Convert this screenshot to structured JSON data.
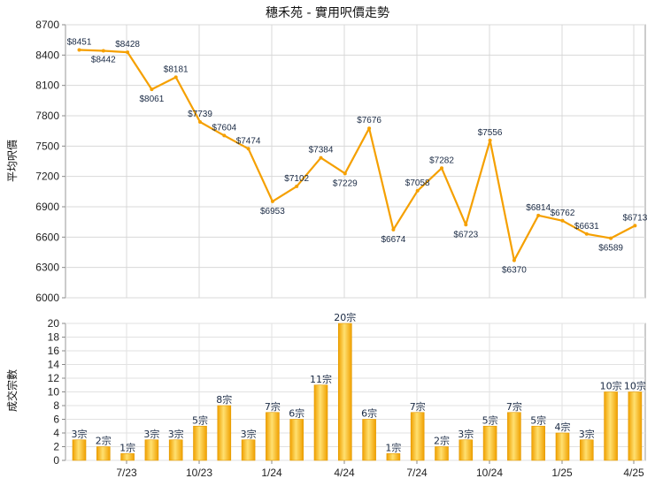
{
  "chart_data": [
    {
      "type": "line",
      "title": "穗禾苑 - 實用呎價走勢",
      "ylabel": "平均呎價",
      "ylim": [
        6000,
        8700
      ],
      "yticks": [
        6000,
        6300,
        6600,
        6900,
        7200,
        7500,
        7800,
        8100,
        8400,
        8700
      ],
      "series": [
        {
          "values": [
            8451,
            8442,
            8428,
            8061,
            8181,
            7739,
            7604,
            7474,
            6953,
            7102,
            7384,
            7229,
            7676,
            6674,
            7058,
            7282,
            6723,
            7556,
            6370,
            6814,
            6762,
            6631,
            6589,
            6713
          ],
          "labels": [
            "$8451",
            "$8442",
            "$8428",
            "$8061",
            "$8181",
            "$7739",
            "$7604",
            "$7474",
            "$6953",
            "$7102",
            "$7384",
            "$7229",
            "$7676",
            "$6674",
            "$7058",
            "$7282",
            "$6723",
            "$7556",
            "$6370",
            "$6814",
            "$6762",
            "$6631",
            "$6589",
            "$6713"
          ]
        }
      ],
      "color": "#f5a000",
      "grid": true
    },
    {
      "type": "bar",
      "ylabel": "成交宗數",
      "ylim": [
        0,
        20
      ],
      "yticks": [
        0,
        2,
        4,
        6,
        8,
        10,
        12,
        14,
        16,
        18,
        20
      ],
      "xtick_labels": [
        "7/23",
        "10/23",
        "1/24",
        "4/24",
        "7/24",
        "10/24",
        "1/25",
        "4/25"
      ],
      "series": [
        {
          "values": [
            3,
            2,
            1,
            3,
            3,
            5,
            8,
            3,
            7,
            6,
            11,
            20,
            6,
            1,
            7,
            2,
            3,
            5,
            7,
            5,
            4,
            3,
            10,
            10
          ],
          "labels": [
            "3宗",
            "2宗",
            "1宗",
            "3宗",
            "3宗",
            "5宗",
            "8宗",
            "3宗",
            "7宗",
            "6宗",
            "11宗",
            "20宗",
            "6宗",
            "1宗",
            "7宗",
            "2宗",
            "3宗",
            "5宗",
            "7宗",
            "5宗",
            "4宗",
            "3宗",
            "10宗",
            "10宗"
          ]
        }
      ],
      "color": "#f5a800",
      "grid": true
    }
  ]
}
